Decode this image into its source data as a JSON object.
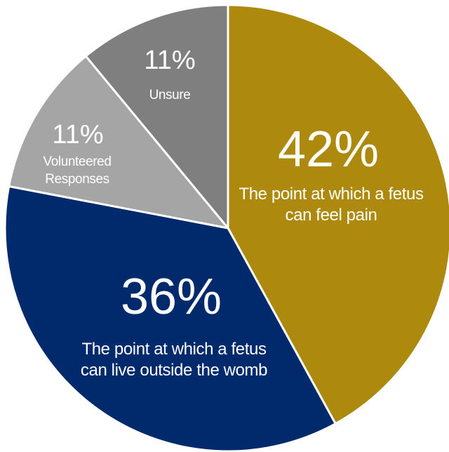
{
  "chart_data": {
    "type": "pie",
    "title": "",
    "slices": [
      {
        "name": "The point at which a fetus can feel pain",
        "label_lines": [
          "The point at which a fetus",
          "can feel pain"
        ],
        "value": 42,
        "value_label": "42%",
        "color": "#ad8a0e"
      },
      {
        "name": "The point at which a fetus can live outside the womb",
        "label_lines": [
          "The point at which a fetus",
          "can live outside the womb"
        ],
        "value": 36,
        "value_label": "36%",
        "color": "#002a6b"
      },
      {
        "name": "Volunteered Responses",
        "label_lines": [
          "Volunteered",
          "Responses"
        ],
        "value": 11,
        "value_label": "11%",
        "color": "#a5a5a5"
      },
      {
        "name": "Unsure",
        "label_lines": [
          "Unsure"
        ],
        "value": 11,
        "value_label": "11%",
        "color": "#7f7f7f"
      }
    ],
    "start": "12 o'clock",
    "direction": "clockwise",
    "slice_border_color": "#ffffff"
  }
}
